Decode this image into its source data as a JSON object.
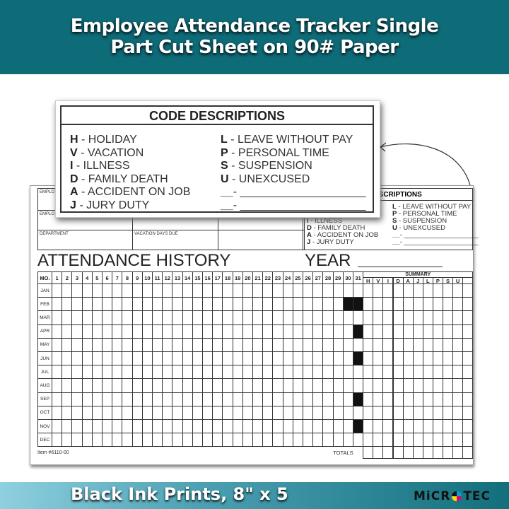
{
  "banner": {
    "title_line1": "Employee Attendance Tracker Single",
    "title_line2": "Part Cut Sheet on 90# Paper",
    "color": "#0e6b78"
  },
  "footer": {
    "text": "Black Ink Prints, 8\" x 5",
    "logo": "MICRO TEC"
  },
  "form": {
    "fields": {
      "employee_name": "EMPLO",
      "employee_no": "EMPLO",
      "department": "DEPARTMENT",
      "vacation_days_due": "VACATION DAYS DUE"
    },
    "codes_title": "CODE DESCRIPTIONS",
    "codes_title_partial": "ESCRIPTIONS",
    "codes_left": [
      {
        "k": "H",
        "v": " - HOLIDAY"
      },
      {
        "k": "V",
        "v": " - VACATION"
      },
      {
        "k": "I",
        "v": " - ILLNESS"
      },
      {
        "k": "D",
        "v": " - FAMILY DEATH"
      },
      {
        "k": "A",
        "v": " - ACCIDENT ON JOB"
      },
      {
        "k": "J",
        "v": " - JURY DUTY"
      }
    ],
    "codes_right": [
      {
        "k": "L",
        "v": " - LEAVE WITHOUT PAY"
      },
      {
        "k": "P",
        "v": " - PERSONAL TIME"
      },
      {
        "k": "S",
        "v": " - SUSPENSION"
      },
      {
        "k": "U",
        "v": " - UNEXCUSED"
      },
      {
        "k": "__",
        "v": "- ____________________"
      },
      {
        "k": "__",
        "v": "- ____________________"
      }
    ],
    "section_title": "ATTENDANCE HISTORY",
    "year_label": "YEAR",
    "month_header": "MO.",
    "days": [
      "1",
      "2",
      "3",
      "4",
      "5",
      "6",
      "7",
      "8",
      "9",
      "10",
      "11",
      "12",
      "13",
      "14",
      "15",
      "16",
      "17",
      "18",
      "19",
      "20",
      "21",
      "22",
      "23",
      "24",
      "25",
      "26",
      "27",
      "28",
      "29",
      "30",
      "31"
    ],
    "months": [
      "JAN",
      "FEB",
      "MAR",
      "APR",
      "MAY",
      "JUN",
      "JUL",
      "AUG",
      "SEP",
      "OCT",
      "NOV",
      "DEC"
    ],
    "summary_title": "SUMMARY",
    "summary_cols": [
      "H",
      "V",
      "I",
      "D",
      "A",
      "J",
      "L",
      "P",
      "S",
      "U",
      ""
    ],
    "blocked_cells": [
      {
        "month": "FEB",
        "days": [
          "30",
          "31"
        ]
      },
      {
        "month": "APR",
        "days": [
          "31"
        ]
      },
      {
        "month": "JUN",
        "days": [
          "31"
        ]
      },
      {
        "month": "SEP",
        "days": [
          "31"
        ]
      },
      {
        "month": "NOV",
        "days": [
          "31"
        ]
      }
    ],
    "item_number": "Item #6110-00",
    "totals_label": "TOTALS"
  }
}
